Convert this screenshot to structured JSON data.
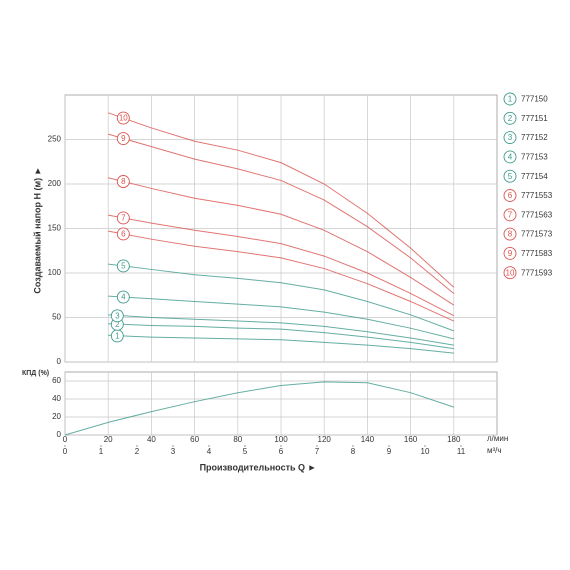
{
  "chart_data": [
    {
      "type": "line",
      "y_label": "Создаваемый напор H (м) ►",
      "x": [
        20,
        40,
        60,
        80,
        100,
        120,
        140,
        160,
        180
      ],
      "xlim": [
        0,
        200
      ],
      "ylim": [
        0,
        300
      ],
      "yticks": [
        0,
        50,
        100,
        150,
        200,
        250
      ],
      "grid": true,
      "legend": "right",
      "series": [
        {
          "name": "777150",
          "label": "1",
          "color": "#3f9a8c",
          "values": [
            30,
            28,
            27,
            26,
            25,
            22,
            19,
            15,
            10
          ]
        },
        {
          "name": "777151",
          "label": "2",
          "color": "#3f9a8c",
          "values": [
            43,
            41,
            40,
            38,
            37,
            33,
            28,
            22,
            15
          ]
        },
        {
          "name": "777152",
          "label": "3",
          "color": "#3f9a8c",
          "values": [
            53,
            50,
            48,
            46,
            44,
            40,
            34,
            27,
            19
          ]
        },
        {
          "name": "777153",
          "label": "4",
          "color": "#3f9a8c",
          "values": [
            74,
            71,
            68,
            65,
            62,
            56,
            48,
            38,
            26
          ]
        },
        {
          "name": "777154",
          "label": "5",
          "color": "#3f9a8c",
          "values": [
            110,
            104,
            98,
            94,
            89,
            81,
            68,
            53,
            35
          ]
        },
        {
          "name": "7771553",
          "label": "6",
          "color": "#d9534f",
          "values": [
            147,
            138,
            130,
            124,
            117,
            105,
            88,
            68,
            46
          ]
        },
        {
          "name": "7771563",
          "label": "7",
          "color": "#d9534f",
          "values": [
            165,
            156,
            148,
            141,
            133,
            119,
            100,
            77,
            52
          ]
        },
        {
          "name": "7771573",
          "label": "8",
          "color": "#d9534f",
          "values": [
            207,
            195,
            184,
            176,
            166,
            148,
            124,
            95,
            64
          ]
        },
        {
          "name": "7771583",
          "label": "9",
          "color": "#d9534f",
          "values": [
            256,
            242,
            228,
            217,
            204,
            182,
            152,
            117,
            77
          ]
        },
        {
          "name": "7771593",
          "label": "10",
          "color": "#d9534f",
          "values": [
            280,
            263,
            248,
            238,
            224,
            200,
            167,
            128,
            84
          ]
        }
      ]
    },
    {
      "type": "line",
      "y_label": "КПД (%)",
      "x_label": "Производительность Q ►",
      "x_unit": "л/мин",
      "x2_unit": "м³/ч",
      "x": [
        0,
        20,
        40,
        60,
        80,
        100,
        120,
        140,
        160,
        180
      ],
      "values": [
        0,
        14,
        26,
        37,
        47,
        55,
        59,
        58,
        47,
        31
      ],
      "color": "#3f9a8c",
      "xlim": [
        0,
        200
      ],
      "xticks": [
        0,
        20,
        40,
        60,
        80,
        100,
        120,
        140,
        160,
        180
      ],
      "x2lim": [
        0,
        12
      ],
      "x2ticks": [
        0,
        1,
        2,
        3,
        4,
        5,
        6,
        7,
        8,
        9,
        10,
        11
      ],
      "ylim": [
        0,
        70
      ],
      "yticks": [
        0,
        20,
        40,
        60
      ],
      "grid": true
    }
  ]
}
